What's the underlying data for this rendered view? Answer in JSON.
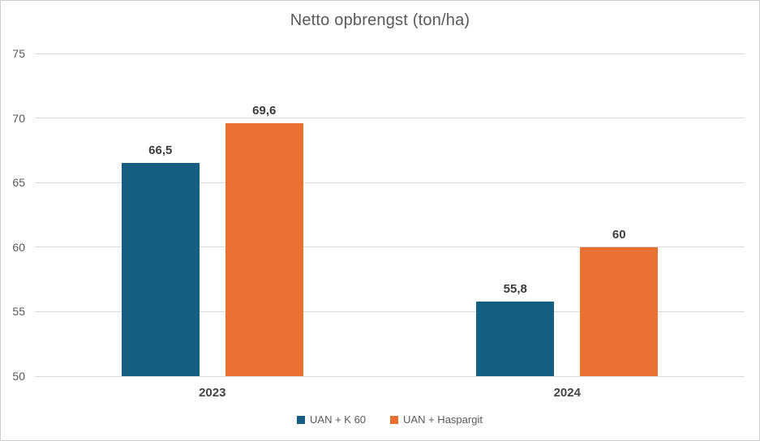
{
  "chart_data": {
    "type": "bar",
    "title": "Netto opbrengst (ton/ha)",
    "categories": [
      "2023",
      "2024"
    ],
    "series": [
      {
        "name": "UAN + K 60",
        "color": "#156082",
        "values": [
          66.5,
          55.8
        ],
        "data_labels": [
          "66,5",
          "55,8"
        ]
      },
      {
        "name": "UAN + Haspargit",
        "color": "#E97132",
        "values": [
          69.6,
          60
        ],
        "data_labels": [
          "69,6",
          "60"
        ]
      }
    ],
    "ylim": [
      50,
      75
    ],
    "yticks": [
      "50",
      "55",
      "60",
      "65",
      "70",
      "75"
    ],
    "grid": true,
    "legend_position": "bottom",
    "colors": {
      "grid": "#D9D9D9",
      "axis_text": "#595959",
      "category_text": "#444444",
      "data_label_text": "#3B3B3B",
      "title_text": "#595959",
      "legend_text": "#595959",
      "frame_border": "#CFCFCF",
      "background": "#FFFFFF"
    }
  }
}
